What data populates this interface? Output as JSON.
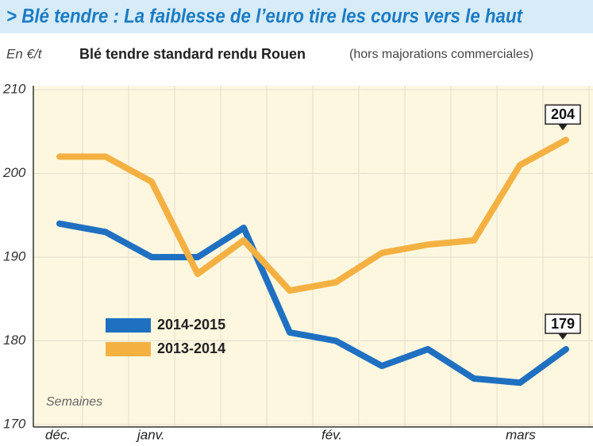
{
  "chart_data": {
    "type": "line",
    "title": "> Blé tendre : La faiblesse de l’euro tire les cours vers le haut",
    "ylabel": "En €/t",
    "subtitle": "Blé tendre standard rendu Rouen",
    "subtitle_note": "(hors majorations commerciales)",
    "xlabel": "Semaines",
    "categories": [
      "déc.",
      null,
      "janv.",
      null,
      null,
      null,
      "fév.",
      null,
      null,
      null,
      "mars",
      null
    ],
    "series": [
      {
        "name": "2014-2015",
        "color": "#1f70c1",
        "values": [
          194,
          193,
          190,
          190,
          193.5,
          181,
          180,
          177,
          179,
          175.5,
          175,
          179
        ]
      },
      {
        "name": "2013-2014",
        "color": "#f4b142",
        "values": [
          202,
          202,
          199,
          188,
          192,
          186,
          187,
          190.5,
          191.5,
          192,
          201,
          204
        ]
      }
    ],
    "ylim": [
      170,
      210
    ],
    "yticks": [
      170,
      180,
      190,
      200,
      210
    ],
    "grid": true
  }
}
